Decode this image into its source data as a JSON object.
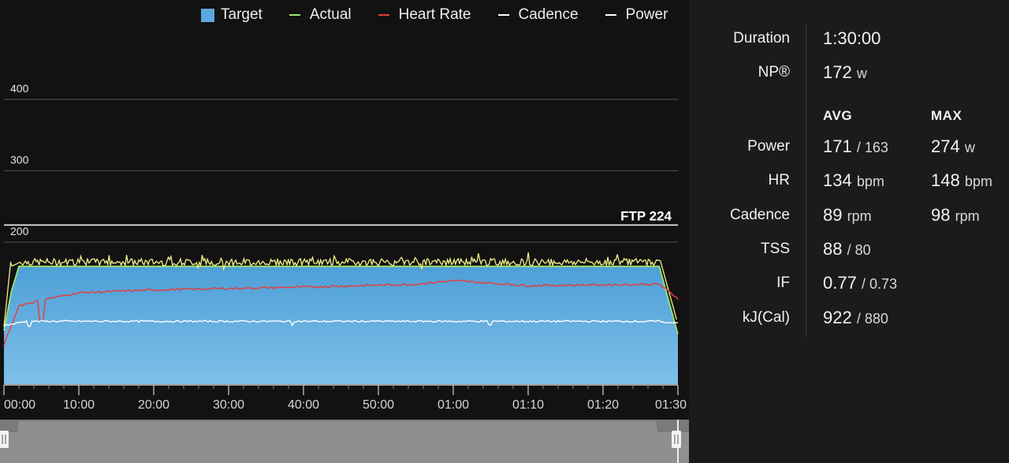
{
  "legend": {
    "target": "Target",
    "actual": "Actual",
    "heart_rate": "Heart Rate",
    "cadence": "Cadence",
    "power": "Power"
  },
  "colors": {
    "target": "#5aa8dc",
    "actual": "#9be36b",
    "heart_rate": "#e04040",
    "cadence": "#ffffff",
    "power": "#f2f08a"
  },
  "chart_data": {
    "type": "area",
    "y_ticks": [
      "400",
      "300",
      "200"
    ],
    "x_ticks": [
      "00:00",
      "10:00",
      "20:00",
      "30:00",
      "40:00",
      "50:00",
      "01:00",
      "01:10",
      "01:20",
      "01:30"
    ],
    "ftp_label": "FTP 224",
    "ftp_value": 224,
    "x_minutes": [
      0,
      90
    ],
    "target_power": [
      [
        0,
        75
      ],
      [
        1,
        130
      ],
      [
        2,
        165
      ],
      [
        87.5,
        165
      ],
      [
        90,
        70
      ]
    ],
    "actual_power_mean": 171,
    "heart_rate": [
      [
        0,
        55
      ],
      [
        2,
        110
      ],
      [
        5,
        118
      ],
      [
        10,
        128
      ],
      [
        20,
        132
      ],
      [
        40,
        136
      ],
      [
        55,
        140
      ],
      [
        60,
        145
      ],
      [
        70,
        138
      ],
      [
        87.5,
        140
      ],
      [
        90,
        120
      ]
    ],
    "cadence_mean": 89,
    "cadence_plot_level": 88
  },
  "stats": {
    "duration_label": "Duration",
    "duration_value": "1:30:00",
    "np_label": "NP®",
    "np_value": "172",
    "np_unit": "w",
    "avg_header": "AVG",
    "max_header": "MAX",
    "rows": [
      {
        "label": "Power",
        "avg": "171",
        "avg_unit": "/ 163",
        "max": "274",
        "max_unit": "w"
      },
      {
        "label": "HR",
        "avg": "134",
        "avg_unit": "bpm",
        "max": "148",
        "max_unit": "bpm"
      },
      {
        "label": "Cadence",
        "avg": "89",
        "avg_unit": "rpm",
        "max": "98",
        "max_unit": "rpm"
      },
      {
        "label": "TSS",
        "avg": "88",
        "avg_unit": "/ 80",
        "max": "",
        "max_unit": ""
      },
      {
        "label": "IF",
        "avg": "0.77",
        "avg_unit": "/ 0.73",
        "max": "",
        "max_unit": ""
      },
      {
        "label": "kJ(Cal)",
        "avg": "922",
        "avg_unit": "/ 880",
        "max": "",
        "max_unit": ""
      }
    ]
  }
}
